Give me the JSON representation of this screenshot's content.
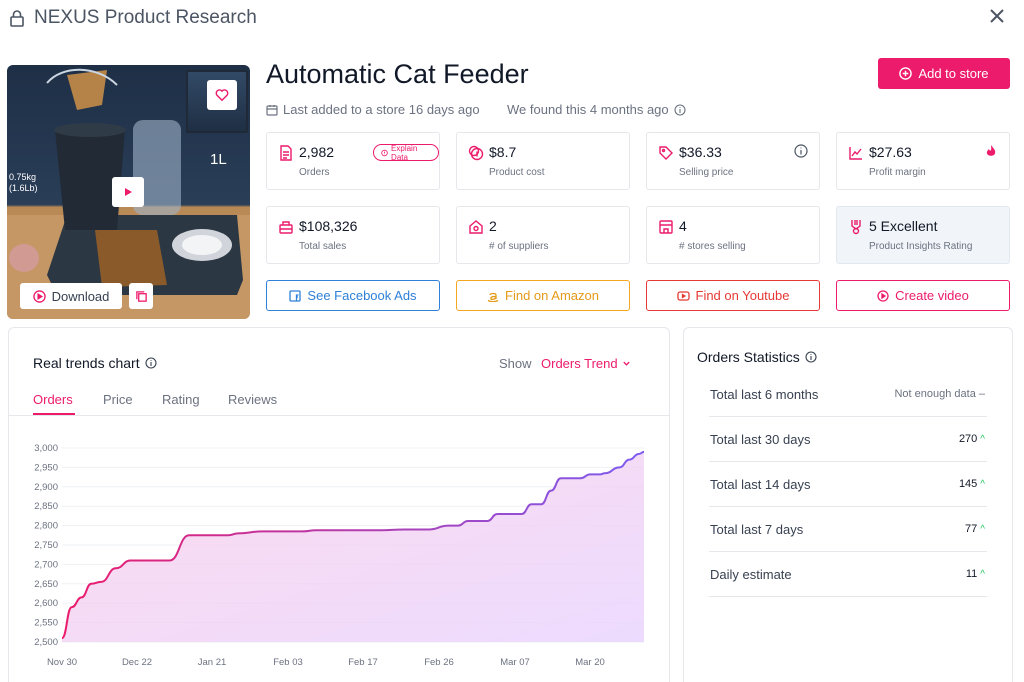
{
  "header": {
    "title": "NEXUS Product Research"
  },
  "product": {
    "title": "Automatic Cat Feeder",
    "last_added": "Last added to a store 16 days ago",
    "found": "We found this 4 months ago",
    "image_labels": {
      "weight": "0.75kg\n(1.6Lb)",
      "volume": "1L"
    }
  },
  "buttons": {
    "add_to_store": "Add to store",
    "download": "Download",
    "facebook": "See Facebook Ads",
    "amazon": "Find on Amazon",
    "youtube": "Find on Youtube",
    "video": "Create video",
    "explain": "Explain Data"
  },
  "stats": [
    {
      "value": "2,982",
      "label": "Orders",
      "icon": "orders-icon"
    },
    {
      "value": "$8.7",
      "label": "Product cost",
      "icon": "coins-icon"
    },
    {
      "value": "$36.33",
      "label": "Selling price",
      "icon": "tag-icon"
    },
    {
      "value": "$27.63",
      "label": "Profit margin",
      "icon": "chart-line-icon"
    },
    {
      "value": "$108,326",
      "label": "Total sales",
      "icon": "register-icon"
    },
    {
      "value": "2",
      "label": "# of suppliers",
      "icon": "supplier-icon"
    },
    {
      "value": "4",
      "label": "# stores selling",
      "icon": "store-icon"
    },
    {
      "value": "5 Excellent",
      "label": "Product Insights Rating",
      "icon": "award-icon"
    }
  ],
  "trends": {
    "title": "Real trends chart",
    "show_label": "Show",
    "show_value": "Orders Trend",
    "tabs": [
      "Orders",
      "Price",
      "Rating",
      "Reviews"
    ],
    "active_tab": "Orders"
  },
  "chart_data": {
    "type": "area",
    "title": "",
    "xlabel": "",
    "ylabel": "",
    "ylim": [
      2500,
      3000
    ],
    "yticks": [
      "2,500",
      "2,550",
      "2,600",
      "2,650",
      "2,700",
      "2,750",
      "2,800",
      "2,850",
      "2,900",
      "2,950",
      "3,000"
    ],
    "xticks": [
      "Nov 30",
      "Dec 22",
      "Jan 21",
      "Feb 03",
      "Feb 17",
      "Feb 26",
      "Mar 07",
      "Mar 20"
    ],
    "x": [
      "2023-11-30",
      "2023-12-02",
      "2023-12-04",
      "2023-12-06",
      "2023-12-08",
      "2023-12-11",
      "2023-12-14",
      "2023-12-18",
      "2023-12-22",
      "2023-12-26",
      "2023-12-30",
      "2024-01-03",
      "2024-01-05",
      "2024-01-10",
      "2024-01-15",
      "2024-01-18",
      "2024-01-21",
      "2024-01-24",
      "2024-01-27",
      "2024-01-30",
      "2024-02-01",
      "2024-02-03",
      "2024-02-08",
      "2024-02-13",
      "2024-02-17",
      "2024-02-19",
      "2024-02-21",
      "2024-02-23",
      "2024-02-25",
      "2024-02-27",
      "2024-02-28",
      "2024-03-01",
      "2024-03-03",
      "2024-03-05",
      "2024-03-07",
      "2024-03-09",
      "2024-03-11",
      "2024-03-13",
      "2024-03-15",
      "2024-03-17",
      "2024-03-19",
      "2024-03-20",
      "2024-03-23",
      "2024-03-25",
      "2024-03-27",
      "2024-03-28"
    ],
    "series": [
      {
        "values": [
          2510,
          2590,
          2615,
          2650,
          2655,
          2690,
          2710,
          2710,
          2710,
          2775,
          2775,
          2775,
          2780,
          2785,
          2785,
          2785,
          2788,
          2788,
          2788,
          2788,
          2788,
          2788,
          2790,
          2790,
          2800,
          2800,
          2812,
          2812,
          2812,
          2830,
          2830,
          2830,
          2830,
          2855,
          2855,
          2890,
          2922,
          2922,
          2922,
          2932,
          2932,
          2935,
          2950,
          2970,
          2985,
          2990
        ]
      }
    ],
    "colors": {
      "line": "#7c5cf0",
      "fill_top": "#d8b4fe",
      "fill_bottom": "#fbcfe8"
    }
  },
  "order_stats": {
    "title": "Orders Statistics",
    "rows": [
      {
        "label": "Total last 6 months",
        "value": "Not enough data –",
        "trend": ""
      },
      {
        "label": "Total last 30 days",
        "value": "270",
        "trend": "up"
      },
      {
        "label": "Total last 14 days",
        "value": "145",
        "trend": "up"
      },
      {
        "label": "Total last 7 days",
        "value": "77",
        "trend": "up"
      },
      {
        "label": "Daily estimate",
        "value": "11",
        "trend": "up"
      }
    ]
  },
  "colors": {
    "accent": "#ec1b6b",
    "facebook": "#2f80d6",
    "amazon": "#f5a623",
    "youtube": "#e53935",
    "video": "#ec1b6b"
  }
}
